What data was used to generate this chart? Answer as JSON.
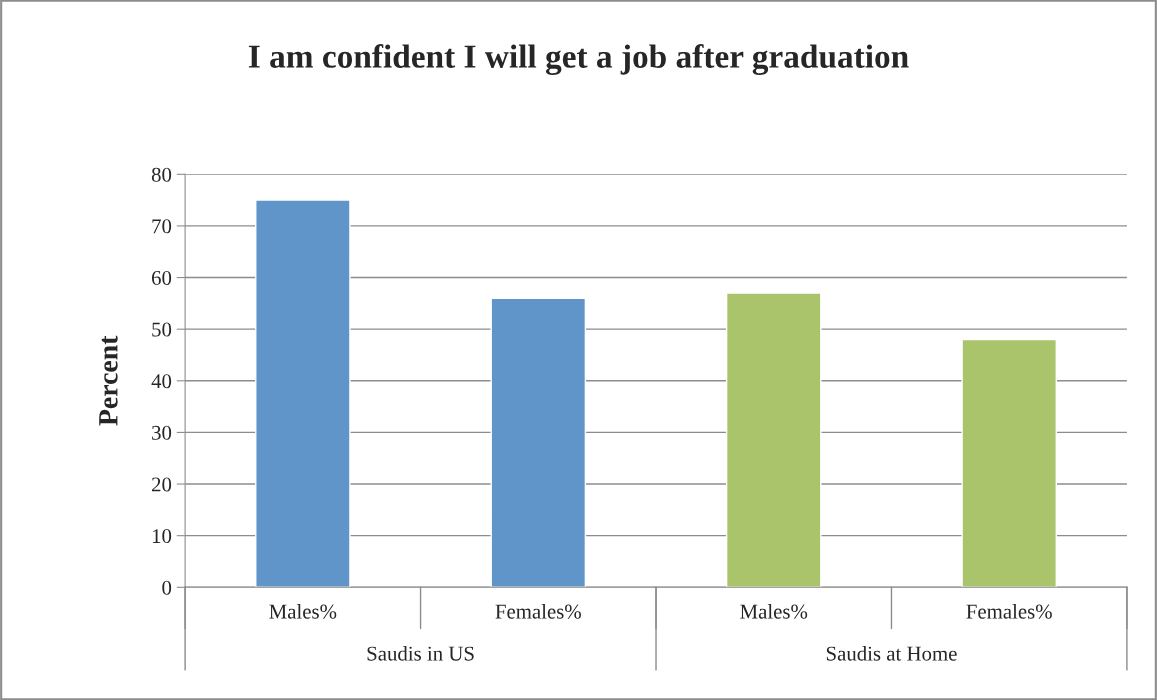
{
  "chart_data": {
    "type": "bar",
    "title": "I am confident I will get a job after graduation",
    "ylabel": "Percent",
    "categories": [
      "Males%",
      "Females%",
      "Males%",
      "Females%"
    ],
    "values": [
      75,
      56,
      57,
      48
    ],
    "colors": [
      "#5f95c9",
      "#5f95c9",
      "#a9c46b",
      "#a9c46b"
    ],
    "ylim": [
      0,
      80
    ],
    "yticks": [
      0,
      10,
      20,
      30,
      40,
      50,
      60,
      70,
      80
    ],
    "grid": "y",
    "legend": false,
    "annotations": [
      "Saudis in US",
      "Saudis at Home"
    ]
  }
}
